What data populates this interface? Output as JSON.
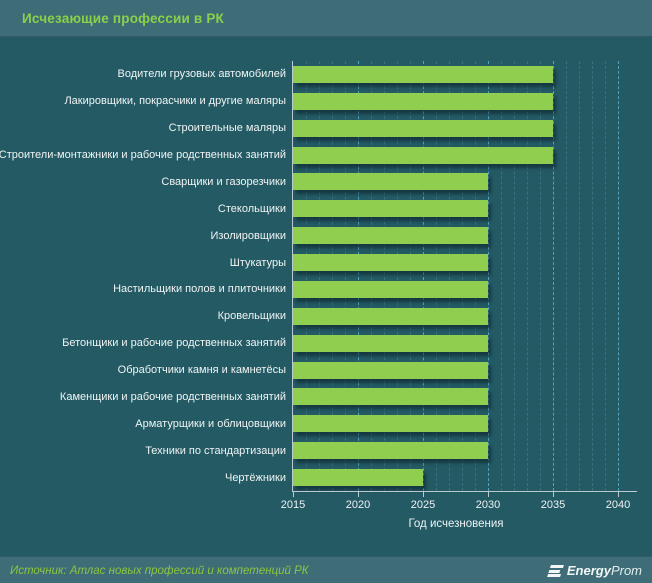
{
  "header": {
    "title": "Исчезающие профессии в РК"
  },
  "footer": {
    "source": "Источник: Атлас новых  профессий и компетенций РК",
    "logo_bold": "Energy",
    "logo_light": "Prom"
  },
  "colors": {
    "background": "#245a64",
    "strip": "#3e6d77",
    "bar": "#8fce4e",
    "title_green": "#8cd04a",
    "source_green": "#8cc63f",
    "text": "#f0f4f4",
    "axis": "#bcc9ce",
    "grid_major": "#60b4d2"
  },
  "chart_data": {
    "type": "bar",
    "orientation": "horizontal",
    "title": "Исчезающие профессии в РК",
    "xlabel": "Год исчезновения",
    "ylabel": "",
    "categories": [
      "Водители грузовых автомобилей",
      "Лакировщики, покрасчики и другие маляры",
      "Строительные маляры",
      "Строители-монтажники и рабочие родственных занятий",
      "Сварщики и газорезчики",
      "Стекольщики",
      "Изолировщики",
      "Штукатуры",
      "Настильщики полов и плиточники",
      "Кровельщики",
      "Бетонщики и рабочие родственных занятий",
      "Обработчики камня и камнетёсы",
      "Каменщики и рабочие родственных занятий",
      "Арматурщики и облицовщики",
      "Техники по стандартизации",
      "Чертёжники"
    ],
    "values": [
      2035,
      2035,
      2035,
      2035,
      2030,
      2030,
      2030,
      2030,
      2030,
      2030,
      2030,
      2030,
      2030,
      2030,
      2030,
      2025
    ],
    "x_ticks": [
      2015,
      2020,
      2025,
      2030,
      2035,
      2040
    ],
    "xlim": [
      2015,
      2041.5
    ],
    "bar_base": 2015,
    "grid": "dashed vertical; minor every 1 year, major every 5 years",
    "legend": "none"
  }
}
